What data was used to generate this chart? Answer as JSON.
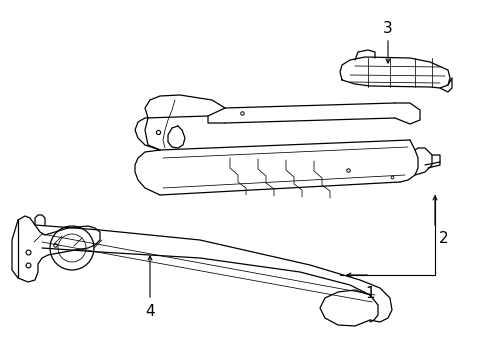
{
  "background_color": "#ffffff",
  "line_color": "#000000",
  "lw": 0.9,
  "tlw": 0.55,
  "fig_width": 4.89,
  "fig_height": 3.6,
  "dpi": 100
}
